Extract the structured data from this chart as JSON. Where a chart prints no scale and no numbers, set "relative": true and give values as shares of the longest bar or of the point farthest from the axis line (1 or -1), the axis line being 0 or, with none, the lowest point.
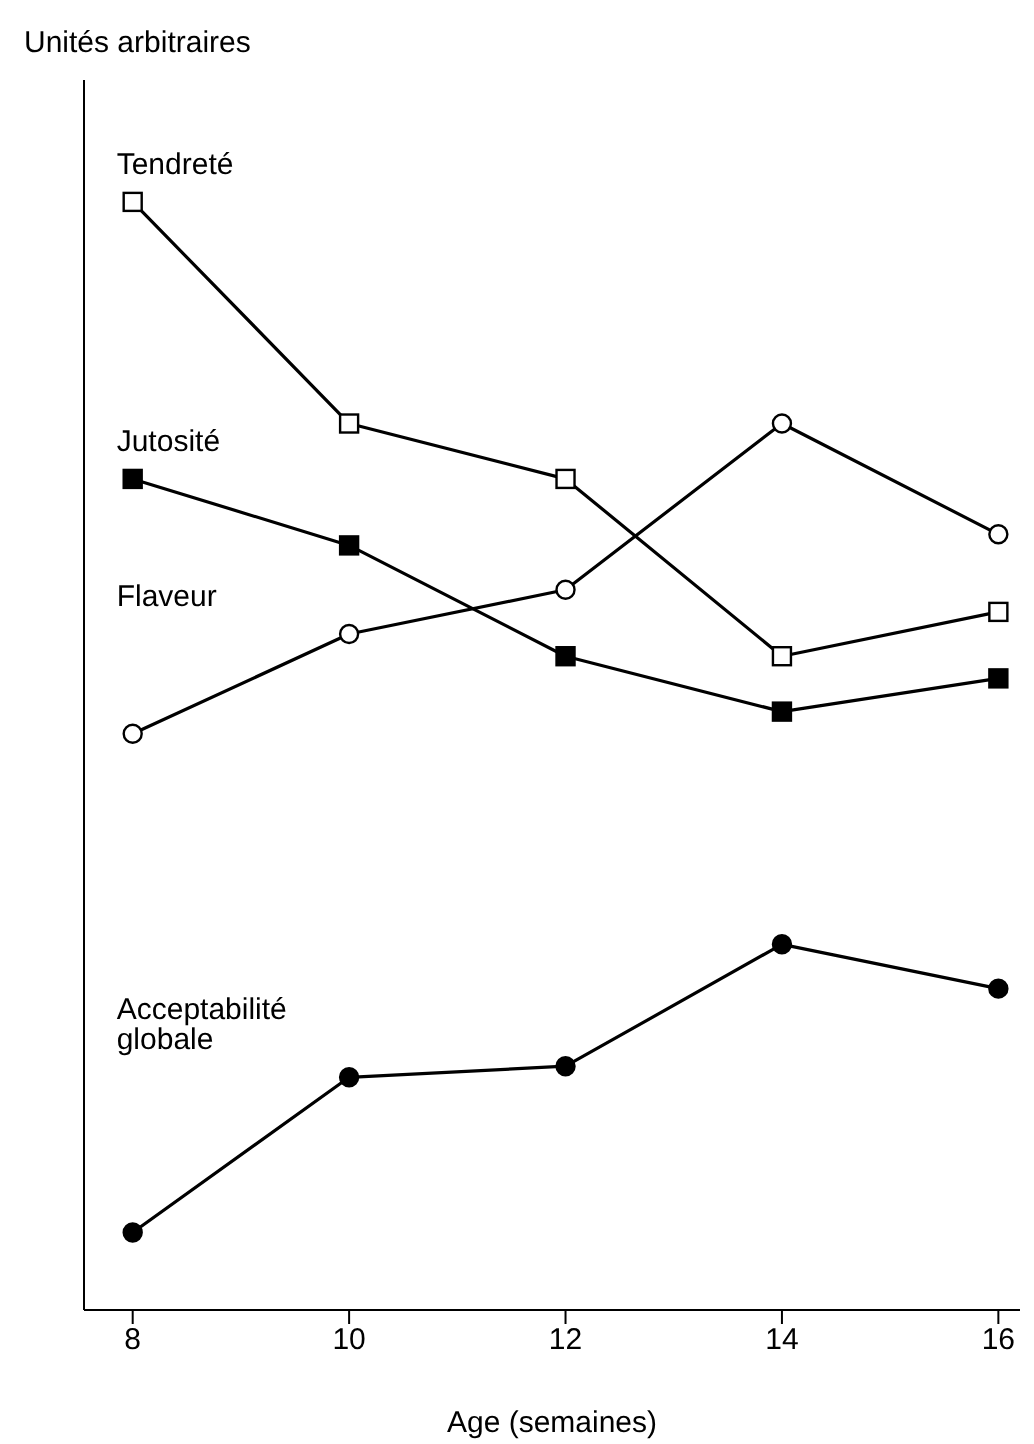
{
  "chart_data": {
    "type": "line",
    "relative": true,
    "ylabel": "Unités arbitraires",
    "xlabel": "Age (semaines)",
    "x": [
      8,
      10,
      12,
      14,
      16
    ],
    "xlim": [
      7.55,
      16.2
    ],
    "xticks": [
      8,
      10,
      12,
      14,
      16
    ],
    "legend": false,
    "grid": false,
    "series": [
      {
        "name": "Tendreté",
        "color": "#000000",
        "marker": "square",
        "values": [
          1,
          0.8,
          0.75,
          0.59,
          0.63
        ]
      },
      {
        "name": "Jutosité",
        "color": "#000000",
        "marker": "square",
        "values": [
          0.75,
          0.69,
          0.59,
          0.54,
          0.57
        ]
      },
      {
        "name": "Flaveur",
        "color": "#000000",
        "marker": "circle",
        "values": [
          0.52,
          0.61,
          0.65,
          0.8,
          0.7
        ]
      },
      {
        "name": "Acceptabilité globale",
        "color": "#000000",
        "marker": "circle",
        "values": [
          0.07,
          0.21,
          0.22,
          0.33,
          0.29
        ]
      }
    ]
  }
}
